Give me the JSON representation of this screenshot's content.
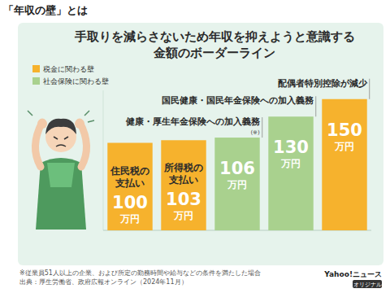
{
  "header": "「年収の壁」とは",
  "chart_data": {
    "type": "bar",
    "title": "手取りを減らさないため年収を抑えようと意識する\n金額のボーダーライン",
    "categories": [
      "住民税の\n支払い",
      "所得税の\n支払い",
      null,
      null,
      null
    ],
    "series": [
      {
        "name": "税金に関わる壁",
        "color": "#f6b22d",
        "values": [
          100,
          103,
          null,
          null,
          150
        ],
        "value_labels": [
          "100万円",
          "103万円",
          null,
          null,
          "150万円"
        ]
      },
      {
        "name": "社会保険に関わる壁",
        "color": "#a9d18e",
        "values": [
          null,
          null,
          106,
          130,
          null
        ],
        "value_labels": [
          null,
          null,
          "106万円",
          "130万円",
          null
        ]
      }
    ],
    "annotations": [
      null,
      null,
      {
        "text": "健康・厚生年金保険への加入義務",
        "note": "(※)"
      },
      {
        "text": "国民健康・国民年金保険への加入義務"
      },
      {
        "text": "配偶者特別控除が減少"
      }
    ],
    "ylim": [
      0,
      160
    ],
    "data_labels": true,
    "legend": "top-left"
  },
  "footnotes": [
    "※従業員51人以上の企業、および所定の勤務時間や給与などの条件を満たした場合",
    "出典：厚生労働省、政府広報オンライン（2024年11月）"
  ],
  "logo": {
    "text": "Yahoo!ニュース",
    "tag": "オリジナル"
  }
}
